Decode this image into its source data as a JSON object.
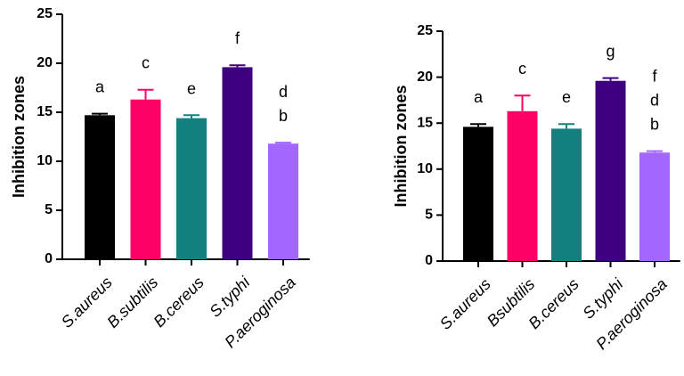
{
  "chart_data": [
    {
      "type": "bar",
      "ylabel": "Inhibition zones",
      "categories": [
        "S.aureus",
        "B.subtilis",
        "B.cereus",
        "S.typhi",
        "P.aeroginosa"
      ],
      "values": [
        14.7,
        16.3,
        14.4,
        19.6,
        11.8
      ],
      "errors": [
        0.15,
        1.0,
        0.3,
        0.2,
        0.1
      ],
      "colors": [
        "#000000",
        "#ff0066",
        "#138080",
        "#3f0080",
        "#a366ff"
      ],
      "annotations": [
        [
          "a"
        ],
        [
          "c"
        ],
        [
          "e"
        ],
        [
          "f"
        ],
        [
          "d",
          "b"
        ]
      ],
      "ylim": [
        0,
        25
      ],
      "yticks": [
        0,
        5,
        10,
        15,
        20,
        25
      ]
    },
    {
      "type": "bar",
      "ylabel": "Inhibition zones",
      "categories": [
        "S.aureus",
        "Bsubtilis",
        "B.cereus",
        "S.typhi",
        "P.aeroginosa"
      ],
      "values": [
        14.6,
        16.3,
        14.4,
        19.6,
        11.8
      ],
      "errors": [
        0.3,
        1.7,
        0.5,
        0.3,
        0.15
      ],
      "colors": [
        "#000000",
        "#ff0066",
        "#138080",
        "#3f0080",
        "#a366ff"
      ],
      "annotations": [
        [
          "a"
        ],
        [
          "c"
        ],
        [
          "e"
        ],
        [
          "g"
        ],
        [
          "f",
          "d",
          "b"
        ]
      ],
      "ylim": [
        0,
        25
      ],
      "yticks": [
        0,
        5,
        10,
        15,
        20,
        25
      ]
    }
  ]
}
